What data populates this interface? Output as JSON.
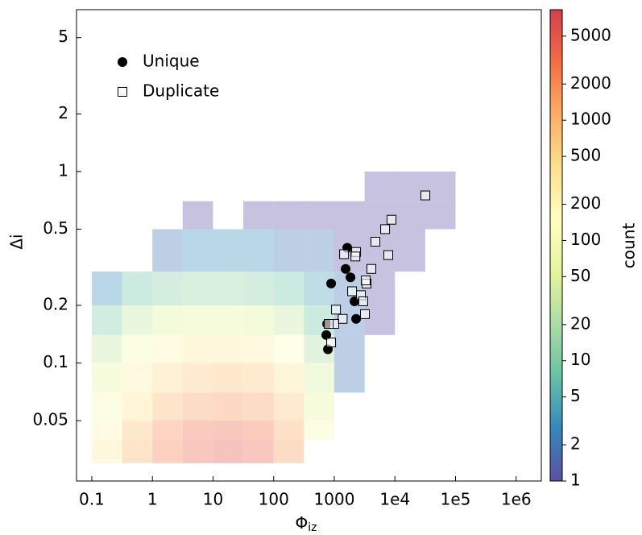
{
  "chart_data": {
    "type": "scatter",
    "xlabel": "Φ",
    "xlabel_sub": "iz",
    "ylabel": "Δi",
    "xscale": "log",
    "yscale": "log",
    "xlim": [
      0.056,
      2600000
    ],
    "ylim": [
      0.0242,
      7.0
    ],
    "xticks": [
      0.1,
      1,
      10,
      100,
      1000,
      {
        "value": 10000,
        "label": "1e4"
      },
      {
        "value": 100000,
        "label": "1e5"
      },
      {
        "value": 1000000,
        "label": "1e6"
      }
    ],
    "yticks": [
      0.05,
      0.1,
      0.2,
      0.5,
      1,
      2,
      5
    ],
    "legend": "upper left",
    "series": [
      {
        "name": "Unique",
        "marker": "circle",
        "color": "#000000",
        "x": [
          1637,
          1540,
          1850,
          887,
          2155,
          2290,
          762,
          738,
          785
        ],
        "values": [
          0.4,
          0.31,
          0.28,
          0.26,
          0.21,
          0.17,
          0.16,
          0.14,
          0.118
        ]
      },
      {
        "name": "Duplicate",
        "marker": "square",
        "color": "#000000",
        "x": [
          31800,
          8790,
          6890,
          4770,
          7780,
          2290,
          1448,
          2230,
          4090,
          3410,
          3300,
          1965,
          2750,
          3000,
          1066,
          1375,
          3200,
          1000,
          810,
          887
        ],
        "values": [
          0.75,
          0.56,
          0.5,
          0.43,
          0.366,
          0.38,
          0.37,
          0.36,
          0.31,
          0.26,
          0.27,
          0.237,
          0.226,
          0.21,
          0.19,
          0.17,
          0.18,
          0.16,
          0.16,
          0.128
        ]
      }
    ],
    "hist2d": {
      "opacity": 0.35,
      "xbins": [
        0.1,
        0.316,
        1,
        3.16,
        10,
        31.6,
        100,
        316,
        1000,
        3162,
        10000,
        31620,
        100000
      ],
      "ybins": [
        0.03,
        0.04,
        0.05,
        0.07,
        0.1,
        0.14,
        0.2,
        0.3,
        0.5,
        0.7,
        1.0
      ],
      "counts": [
        [
          300,
          1000,
          2500,
          4000,
          5000,
          4000,
          1500,
          null,
          null,
          null,
          null,
          null
        ],
        [
          200,
          800,
          2000,
          3500,
          4000,
          3000,
          1200,
          100,
          null,
          null,
          null,
          null
        ],
        [
          100,
          400,
          1000,
          1500,
          1800,
          1500,
          700,
          60,
          null,
          null,
          null,
          null
        ],
        [
          60,
          250,
          500,
          700,
          800,
          700,
          400,
          40,
          2,
          null,
          null,
          null
        ],
        [
          30,
          100,
          200,
          300,
          300,
          250,
          150,
          20,
          2,
          null,
          null,
          null
        ],
        [
          10,
          30,
          50,
          60,
          60,
          50,
          30,
          8,
          2,
          1,
          null,
          null
        ],
        [
          3,
          8,
          12,
          15,
          15,
          12,
          8,
          4,
          2,
          1,
          null,
          null
        ],
        [
          null,
          null,
          2,
          3,
          3,
          3,
          2,
          2,
          1,
          1,
          1,
          null
        ],
        [
          null,
          null,
          null,
          1,
          null,
          1,
          1,
          1,
          1,
          1,
          1,
          1
        ],
        [
          null,
          null,
          null,
          null,
          null,
          null,
          null,
          null,
          null,
          1,
          1,
          1
        ]
      ]
    },
    "colorbar": {
      "label": "count",
      "scale": "log",
      "clim": [
        1,
        8300
      ],
      "ticks": [
        1,
        2,
        5,
        10,
        20,
        50,
        100,
        200,
        500,
        1000,
        2000,
        5000
      ],
      "colormap": [
        "#5e4fa2",
        "#3288bd",
        "#66c2a5",
        "#abdda4",
        "#e6f598",
        "#ffffbf",
        "#fee08b",
        "#fdae61",
        "#f46d43",
        "#d53e4f"
      ]
    }
  }
}
